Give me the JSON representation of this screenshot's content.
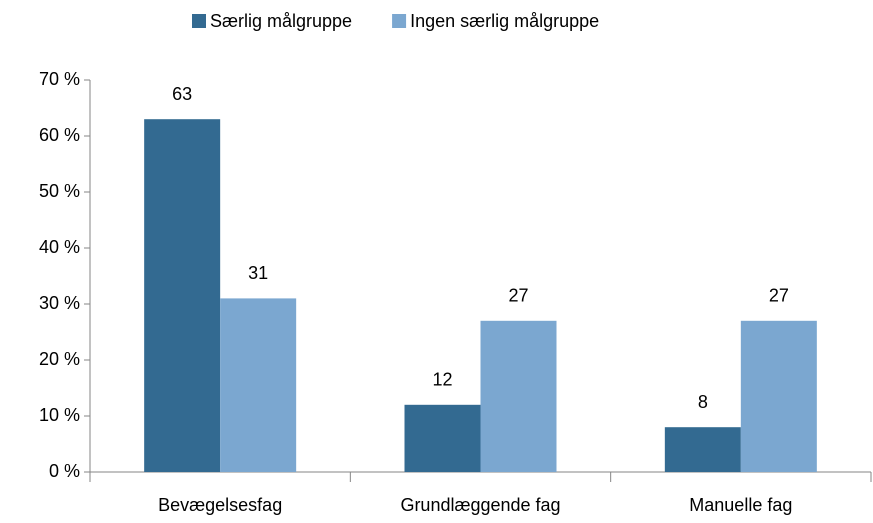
{
  "chart_data": {
    "type": "bar",
    "categories": [
      "Bevægelsesfag",
      "Grundlæggende fag",
      "Manuelle fag"
    ],
    "series": [
      {
        "name": "Særlig målgruppe",
        "color": "#336a91",
        "values": [
          63,
          12,
          8
        ]
      },
      {
        "name": "Ingen særlig målgruppe",
        "color": "#7ba7d0",
        "values": [
          31,
          27,
          27
        ]
      }
    ],
    "ylim": [
      0,
      70
    ],
    "yticks": [
      {
        "value": 0,
        "label": "0 %"
      },
      {
        "value": 10,
        "label": "10 %"
      },
      {
        "value": 20,
        "label": "20 %"
      },
      {
        "value": 30,
        "label": "30 %"
      },
      {
        "value": 40,
        "label": "40 %"
      },
      {
        "value": 50,
        "label": "50 %"
      },
      {
        "value": 60,
        "label": "60 %"
      },
      {
        "value": 70,
        "label": "70 %"
      }
    ],
    "grid": false,
    "legend": "top"
  }
}
